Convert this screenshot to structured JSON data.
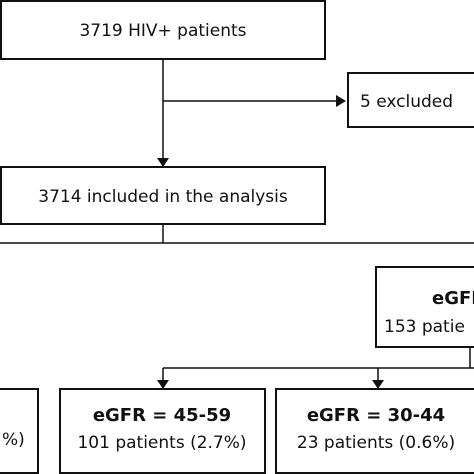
{
  "boxes": {
    "start": {
      "text": "3719 HIV+ patients"
    },
    "excluded": {
      "text": "5 excluded"
    },
    "included": {
      "text": "3714 included in the analysis"
    },
    "right_group": {
      "title": "eGFR",
      "text": "153 patie"
    },
    "left_partial": {
      "text": "%)"
    },
    "egfr_45_59": {
      "title": "eGFR = 45-59",
      "text": "101 patients (2.7%)"
    },
    "egfr_30_44": {
      "title": "eGFR = 30-44",
      "text": "23 patients (0.6%)"
    }
  },
  "colors": {
    "line": "#111111",
    "box_border": "#111111",
    "background": "#ffffff"
  }
}
